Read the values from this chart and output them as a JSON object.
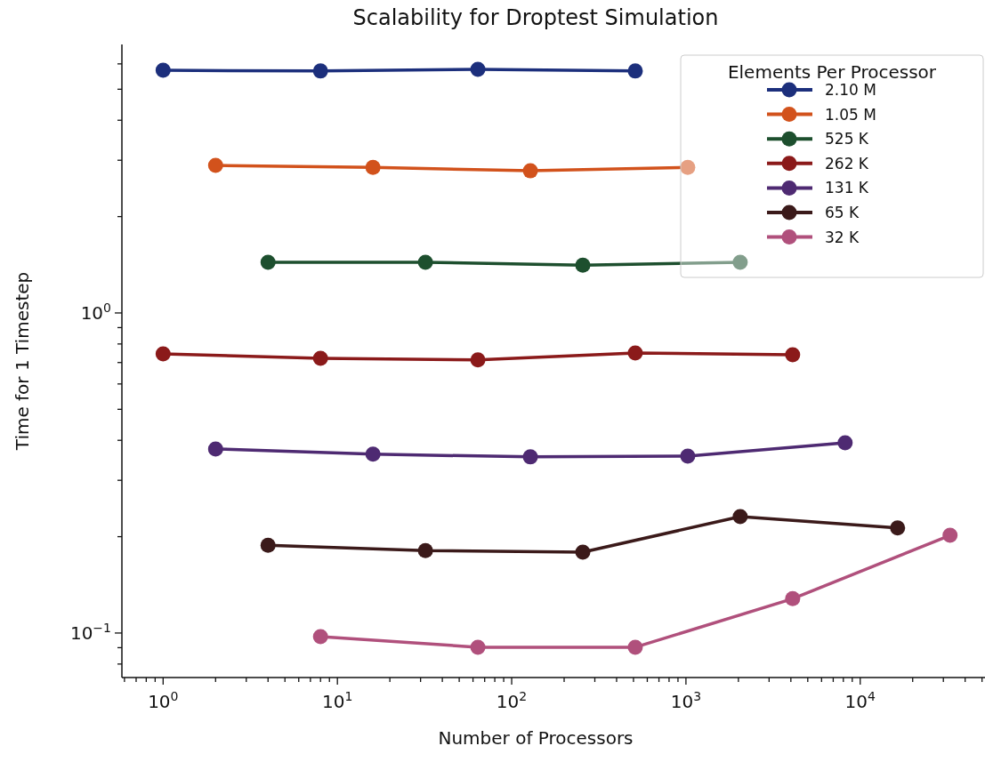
{
  "chart_data": {
    "type": "line",
    "title": "Scalability for Droptest Simulation",
    "xlabel": "Number of Processors",
    "ylabel": "Time for 1 Timestep",
    "legend_title": "Elements Per Processor",
    "legend": "top right",
    "marker": "circle",
    "line_style": "solid",
    "grid": false,
    "log": "xy",
    "xlim": [
      0.58,
      52000
    ],
    "ylim": [
      0.0726,
      6.9
    ],
    "xticks": [
      {
        "value": 0.6,
        "label": null
      },
      {
        "value": 0.7,
        "label": null
      },
      {
        "value": 0.8,
        "label": null
      },
      {
        "value": 0.9,
        "label": null
      },
      {
        "value": 1,
        "label": "10$^{0}$"
      },
      {
        "value": 2,
        "label": null
      },
      {
        "value": 3,
        "label": null
      },
      {
        "value": 4,
        "label": null
      },
      {
        "value": 5,
        "label": null
      },
      {
        "value": 6,
        "label": null
      },
      {
        "value": 7,
        "label": null
      },
      {
        "value": 8,
        "label": null
      },
      {
        "value": 9,
        "label": null
      },
      {
        "value": 10,
        "label": "10$^{1}$"
      },
      {
        "value": 20,
        "label": null
      },
      {
        "value": 30,
        "label": null
      },
      {
        "value": 40,
        "label": null
      },
      {
        "value": 50,
        "label": null
      },
      {
        "value": 60,
        "label": null
      },
      {
        "value": 70,
        "label": null
      },
      {
        "value": 80,
        "label": null
      },
      {
        "value": 90,
        "label": null
      },
      {
        "value": 100,
        "label": "10$^{2}$"
      },
      {
        "value": 200,
        "label": null
      },
      {
        "value": 300,
        "label": null
      },
      {
        "value": 400,
        "label": null
      },
      {
        "value": 500,
        "label": null
      },
      {
        "value": 600,
        "label": null
      },
      {
        "value": 700,
        "label": null
      },
      {
        "value": 800,
        "label": null
      },
      {
        "value": 900,
        "label": null
      },
      {
        "value": 1000,
        "label": "10$^{3}$"
      },
      {
        "value": 2000,
        "label": null
      },
      {
        "value": 3000,
        "label": null
      },
      {
        "value": 4000,
        "label": null
      },
      {
        "value": 5000,
        "label": null
      },
      {
        "value": 6000,
        "label": null
      },
      {
        "value": 7000,
        "label": null
      },
      {
        "value": 8000,
        "label": null
      },
      {
        "value": 9000,
        "label": null
      },
      {
        "value": 10000,
        "label": "10$^{4}$"
      },
      {
        "value": 20000,
        "label": null
      },
      {
        "value": 30000,
        "label": null
      },
      {
        "value": 40000,
        "label": null
      },
      {
        "value": 50000,
        "label": null
      }
    ],
    "yticks": [
      {
        "value": 0.08,
        "label": null
      },
      {
        "value": 0.09,
        "label": null
      },
      {
        "value": 0.1,
        "label": "10$^{−1}$"
      },
      {
        "value": 0.2,
        "label": null
      },
      {
        "value": 0.3,
        "label": null
      },
      {
        "value": 0.4,
        "label": null
      },
      {
        "value": 0.5,
        "label": null
      },
      {
        "value": 0.6,
        "label": null
      },
      {
        "value": 0.7,
        "label": null
      },
      {
        "value": 0.8,
        "label": null
      },
      {
        "value": 0.9,
        "label": null
      },
      {
        "value": 1,
        "label": "10$^{0}$"
      },
      {
        "value": 2,
        "label": null
      },
      {
        "value": 3,
        "label": null
      },
      {
        "value": 4,
        "label": null
      },
      {
        "value": 5,
        "label": null
      },
      {
        "value": 6,
        "label": null
      }
    ],
    "series": [
      {
        "name": "2.10 M",
        "color": "#1c2f7c",
        "x": [
          1,
          8,
          64,
          512
        ],
        "values": [
          5.73,
          5.7,
          5.77,
          5.7
        ]
      },
      {
        "name": "1.05 M",
        "color": "#d2521c",
        "x": [
          2,
          16,
          128,
          1024
        ],
        "values": [
          2.89,
          2.85,
          2.78,
          2.85
        ]
      },
      {
        "name": "525 K",
        "color": "#1d4f2e",
        "x": [
          4,
          32,
          256,
          2048
        ],
        "values": [
          1.44,
          1.44,
          1.41,
          1.44
        ]
      },
      {
        "name": "262 K",
        "color": "#8b1a1a",
        "x": [
          1,
          8,
          64,
          512,
          4096
        ],
        "values": [
          0.745,
          0.722,
          0.713,
          0.75,
          0.74
        ]
      },
      {
        "name": "131 K",
        "color": "#4e2a72",
        "x": [
          2,
          16,
          128,
          1024,
          8192
        ],
        "values": [
          0.376,
          0.362,
          0.355,
          0.357,
          0.393
        ]
      },
      {
        "name": "65 K",
        "color": "#3b1a1a",
        "x": [
          4,
          32,
          256,
          2048,
          16384
        ],
        "values": [
          0.188,
          0.181,
          0.179,
          0.231,
          0.213
        ]
      },
      {
        "name": "32 K",
        "color": "#b0507c",
        "x": [
          8,
          64,
          512,
          4096,
          32768
        ],
        "values": [
          0.0975,
          0.0903,
          0.0903,
          0.128,
          0.202
        ]
      }
    ]
  }
}
